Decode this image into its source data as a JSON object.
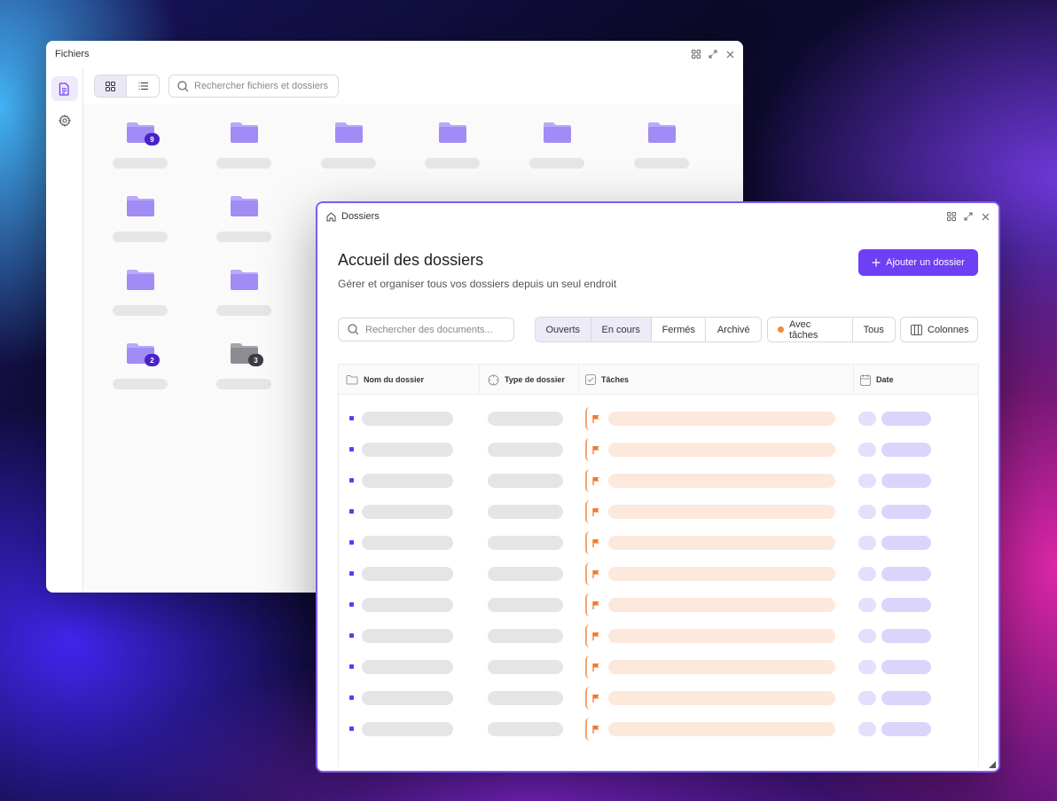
{
  "files_window": {
    "title": "Fichiers",
    "search_placeholder": "Rechercher fichiers et dossiers",
    "folder_badges": {
      "first": "9",
      "second_to_last": "2",
      "last": "3"
    }
  },
  "dossiers_window": {
    "title": "Dossiers",
    "heading": "Accueil des dossiers",
    "subtitle": "Gérer et organiser tous vos dossiers depuis un seul endroit",
    "add_button": "Ajouter un dossier",
    "search_placeholder": "Rechercher des documents...",
    "status_filters": [
      "Ouverts",
      "En cours",
      "Fermés",
      "Archivé"
    ],
    "task_filters": [
      "Avec tâches",
      "Tous"
    ],
    "columns_button": "Colonnes",
    "table_headers": [
      "Nom du dossier",
      "Type de dossier",
      "Tâches",
      "Date"
    ]
  },
  "colors": {
    "accent": "#6d3ff5",
    "folder": "#a18cf5",
    "task_flag": "#f07a2c"
  }
}
